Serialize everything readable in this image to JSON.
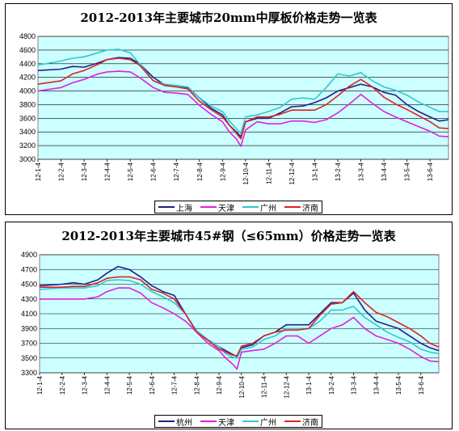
{
  "chart_data": [
    {
      "type": "line",
      "title": "2012-2013年主要城市20mm中厚板价格走势一览表",
      "xlabel": "",
      "ylabel": "",
      "ylim": [
        3000,
        4800
      ],
      "yticks": [
        3000,
        3200,
        3400,
        3600,
        3800,
        4000,
        4200,
        4400,
        4600,
        4800
      ],
      "x_ticks": [
        "12-1-4",
        "12-2-4",
        "12-3-4",
        "12-4-4",
        "12-5-4",
        "12-6-4",
        "12-7-4",
        "12-8-4",
        "12-9-4",
        "12-10-4",
        "12-11-4",
        "12-12-4",
        "13-1-4",
        "13-2-4",
        "13-3-4",
        "13-4-4",
        "13-5-4",
        "13-6-4"
      ],
      "x_positions": [
        0,
        1,
        2,
        3,
        4,
        5,
        6,
        7,
        8,
        9,
        10,
        11,
        12,
        13,
        14,
        15,
        16,
        17
      ],
      "x_range": [
        0,
        17.8
      ],
      "grid": true,
      "legend": "bottom",
      "series": [
        {
          "name": "上海",
          "color": "#1F1F8C",
          "x": [
            0,
            1,
            1.5,
            2,
            2.6,
            3,
            3.5,
            4,
            4.4,
            5,
            5.5,
            6,
            6.5,
            7,
            7.5,
            8,
            8.3,
            8.6,
            8.8,
            9,
            9.5,
            10,
            10.5,
            11,
            11.5,
            12,
            12.5,
            13,
            13.5,
            14,
            14.5,
            15,
            15.5,
            16,
            16.5,
            17,
            17.4,
            17.8
          ],
          "values": [
            4300,
            4320,
            4360,
            4350,
            4410,
            4460,
            4490,
            4480,
            4400,
            4200,
            4090,
            4080,
            4050,
            3900,
            3750,
            3650,
            3500,
            3400,
            3330,
            3550,
            3600,
            3600,
            3680,
            3770,
            3780,
            3830,
            3900,
            4000,
            4050,
            4100,
            4060,
            3980,
            3940,
            3800,
            3700,
            3620,
            3560,
            3580
          ]
        },
        {
          "name": "天津",
          "color": "#E020E0",
          "x": [
            0,
            1,
            1.5,
            2,
            2.6,
            3,
            3.5,
            4,
            4.4,
            5,
            5.5,
            6,
            6.5,
            7,
            7.5,
            8,
            8.3,
            8.6,
            8.8,
            9,
            9.5,
            10,
            10.5,
            11,
            11.5,
            12,
            12.5,
            13,
            13.5,
            14,
            14.5,
            15,
            15.5,
            16,
            16.5,
            17,
            17.4,
            17.8
          ],
          "values": [
            4000,
            4050,
            4120,
            4170,
            4250,
            4280,
            4290,
            4280,
            4200,
            4050,
            3980,
            3970,
            3950,
            3790,
            3660,
            3550,
            3400,
            3300,
            3190,
            3430,
            3550,
            3520,
            3520,
            3560,
            3560,
            3540,
            3580,
            3680,
            3810,
            3950,
            3820,
            3700,
            3620,
            3550,
            3480,
            3410,
            3340,
            3330
          ]
        },
        {
          "name": "广州",
          "color": "#30C8D0",
          "x": [
            0,
            1,
            1.5,
            2,
            2.6,
            3,
            3.5,
            4,
            4.4,
            5,
            5.5,
            6,
            6.5,
            7,
            7.5,
            8,
            8.3,
            8.6,
            8.8,
            9,
            9.5,
            10,
            10.5,
            11,
            11.5,
            12,
            12.5,
            13,
            13.5,
            14,
            14.5,
            15,
            15.5,
            16,
            16.5,
            17,
            17.4,
            17.8
          ],
          "values": [
            4380,
            4440,
            4480,
            4500,
            4560,
            4600,
            4610,
            4560,
            4400,
            4150,
            4100,
            4080,
            4060,
            3900,
            3780,
            3700,
            3560,
            3450,
            3380,
            3620,
            3650,
            3700,
            3760,
            3880,
            3900,
            3880,
            4050,
            4250,
            4220,
            4270,
            4150,
            4060,
            4010,
            3940,
            3840,
            3760,
            3700,
            3700
          ]
        },
        {
          "name": "济南",
          "color": "#E02020",
          "x": [
            0,
            1,
            1.5,
            2,
            2.6,
            3,
            3.5,
            4,
            4.4,
            5,
            5.5,
            6,
            6.5,
            7,
            7.5,
            8,
            8.3,
            8.6,
            8.8,
            9,
            9.5,
            10,
            10.5,
            11,
            11.5,
            12,
            12.5,
            13,
            13.5,
            14,
            14.5,
            15,
            15.5,
            16,
            16.5,
            17,
            17.4,
            17.8
          ],
          "values": [
            4100,
            4150,
            4250,
            4300,
            4390,
            4460,
            4480,
            4460,
            4380,
            4150,
            4080,
            4060,
            4030,
            3850,
            3730,
            3620,
            3500,
            3380,
            3300,
            3550,
            3620,
            3620,
            3660,
            3720,
            3720,
            3720,
            3800,
            3930,
            4070,
            4170,
            4060,
            3910,
            3810,
            3730,
            3640,
            3550,
            3460,
            3450
          ]
        }
      ]
    },
    {
      "type": "line",
      "title": "2012-2013年主要城市45#钢（≤65mm）价格走势一览表",
      "xlabel": "",
      "ylabel": "",
      "ylim": [
        3300,
        4900
      ],
      "yticks": [
        3300,
        3500,
        3700,
        3900,
        4100,
        4300,
        4500,
        4700,
        4900
      ],
      "x_ticks": [
        "12-1-4",
        "12-2-4",
        "12-3-4",
        "12-4-4",
        "12-5-4",
        "12-6-4",
        "12-7-4",
        "12-8-4",
        "12-9-4",
        "12-10-4",
        "12-11-4",
        "12-12-4",
        "13-1-4",
        "13-2-4",
        "13-3-4",
        "13-4-4",
        "13-5-4",
        "13-6-4"
      ],
      "x_positions": [
        0,
        1,
        2,
        3,
        4,
        5,
        6,
        7,
        8,
        9,
        10,
        11,
        12,
        13,
        14,
        15,
        16,
        17
      ],
      "x_range": [
        0,
        17.8
      ],
      "grid": true,
      "legend": "bottom",
      "series": [
        {
          "name": "杭州",
          "color": "#1F1F8C",
          "x": [
            0,
            1,
            1.5,
            2,
            2.6,
            3,
            3.5,
            4,
            4.5,
            5,
            5.5,
            6,
            6.5,
            7,
            7.5,
            8,
            8.3,
            8.6,
            8.8,
            9,
            9.5,
            10,
            10.5,
            11,
            11.5,
            12,
            12.5,
            13,
            13.5,
            14,
            14.5,
            15,
            15.5,
            16,
            16.5,
            17,
            17.4,
            17.8
          ],
          "values": [
            4480,
            4500,
            4520,
            4500,
            4560,
            4650,
            4740,
            4700,
            4600,
            4480,
            4400,
            4350,
            4100,
            3850,
            3750,
            3650,
            3600,
            3550,
            3520,
            3640,
            3680,
            3800,
            3850,
            3950,
            3950,
            3950,
            4100,
            4250,
            4250,
            4380,
            4150,
            4000,
            3950,
            3900,
            3800,
            3700,
            3640,
            3600
          ]
        },
        {
          "name": "天津",
          "color": "#E020E0",
          "x": [
            0,
            1,
            1.5,
            2,
            2.6,
            3,
            3.5,
            4,
            4.5,
            5,
            5.5,
            6,
            6.5,
            7,
            7.5,
            8,
            8.3,
            8.6,
            8.8,
            9,
            9.5,
            10,
            10.5,
            11,
            11.5,
            12,
            12.5,
            13,
            13.5,
            14,
            14.5,
            15,
            15.5,
            16,
            16.5,
            17,
            17.4,
            17.8
          ],
          "values": [
            4300,
            4300,
            4300,
            4300,
            4330,
            4400,
            4450,
            4450,
            4380,
            4250,
            4180,
            4100,
            4000,
            3850,
            3700,
            3600,
            3500,
            3420,
            3350,
            3580,
            3600,
            3620,
            3700,
            3800,
            3800,
            3700,
            3800,
            3900,
            3950,
            4050,
            3900,
            3800,
            3750,
            3700,
            3620,
            3520,
            3460,
            3450
          ]
        },
        {
          "name": "广州",
          "color": "#30C8D0",
          "x": [
            0,
            1,
            1.5,
            2,
            2.6,
            3,
            3.5,
            4,
            4.5,
            5,
            5.5,
            6,
            6.5,
            7,
            7.5,
            8,
            8.3,
            8.6,
            8.8,
            9,
            9.5,
            10,
            10.5,
            11,
            11.5,
            12,
            12.5,
            13,
            13.5,
            14,
            14.5,
            15,
            15.5,
            16,
            16.5,
            17,
            17.4,
            17.8
          ],
          "values": [
            4430,
            4450,
            4450,
            4450,
            4480,
            4550,
            4560,
            4550,
            4500,
            4400,
            4330,
            4250,
            4100,
            3870,
            3750,
            3650,
            3560,
            3510,
            3500,
            3620,
            3650,
            3750,
            3800,
            3900,
            3900,
            3900,
            4000,
            4150,
            4150,
            4200,
            4050,
            3950,
            3850,
            3780,
            3720,
            3620,
            3580,
            3560
          ]
        },
        {
          "name": "济南",
          "color": "#E02020",
          "x": [
            0,
            1,
            1.5,
            2,
            2.6,
            3,
            3.5,
            4,
            4.5,
            5,
            5.5,
            6,
            6.5,
            7,
            7.5,
            8,
            8.3,
            8.6,
            8.8,
            9,
            9.5,
            10,
            10.5,
            11,
            11.5,
            12,
            12.5,
            13,
            13.5,
            14,
            14.5,
            15,
            15.5,
            16,
            16.5,
            17,
            17.4,
            17.8
          ],
          "values": [
            4460,
            4460,
            4470,
            4470,
            4520,
            4580,
            4600,
            4600,
            4560,
            4430,
            4380,
            4300,
            4100,
            3850,
            3740,
            3620,
            3580,
            3540,
            3530,
            3660,
            3700,
            3800,
            3850,
            3880,
            3880,
            3900,
            4080,
            4230,
            4250,
            4400,
            4250,
            4120,
            4060,
            3980,
            3900,
            3800,
            3700,
            3650
          ]
        }
      ]
    }
  ]
}
